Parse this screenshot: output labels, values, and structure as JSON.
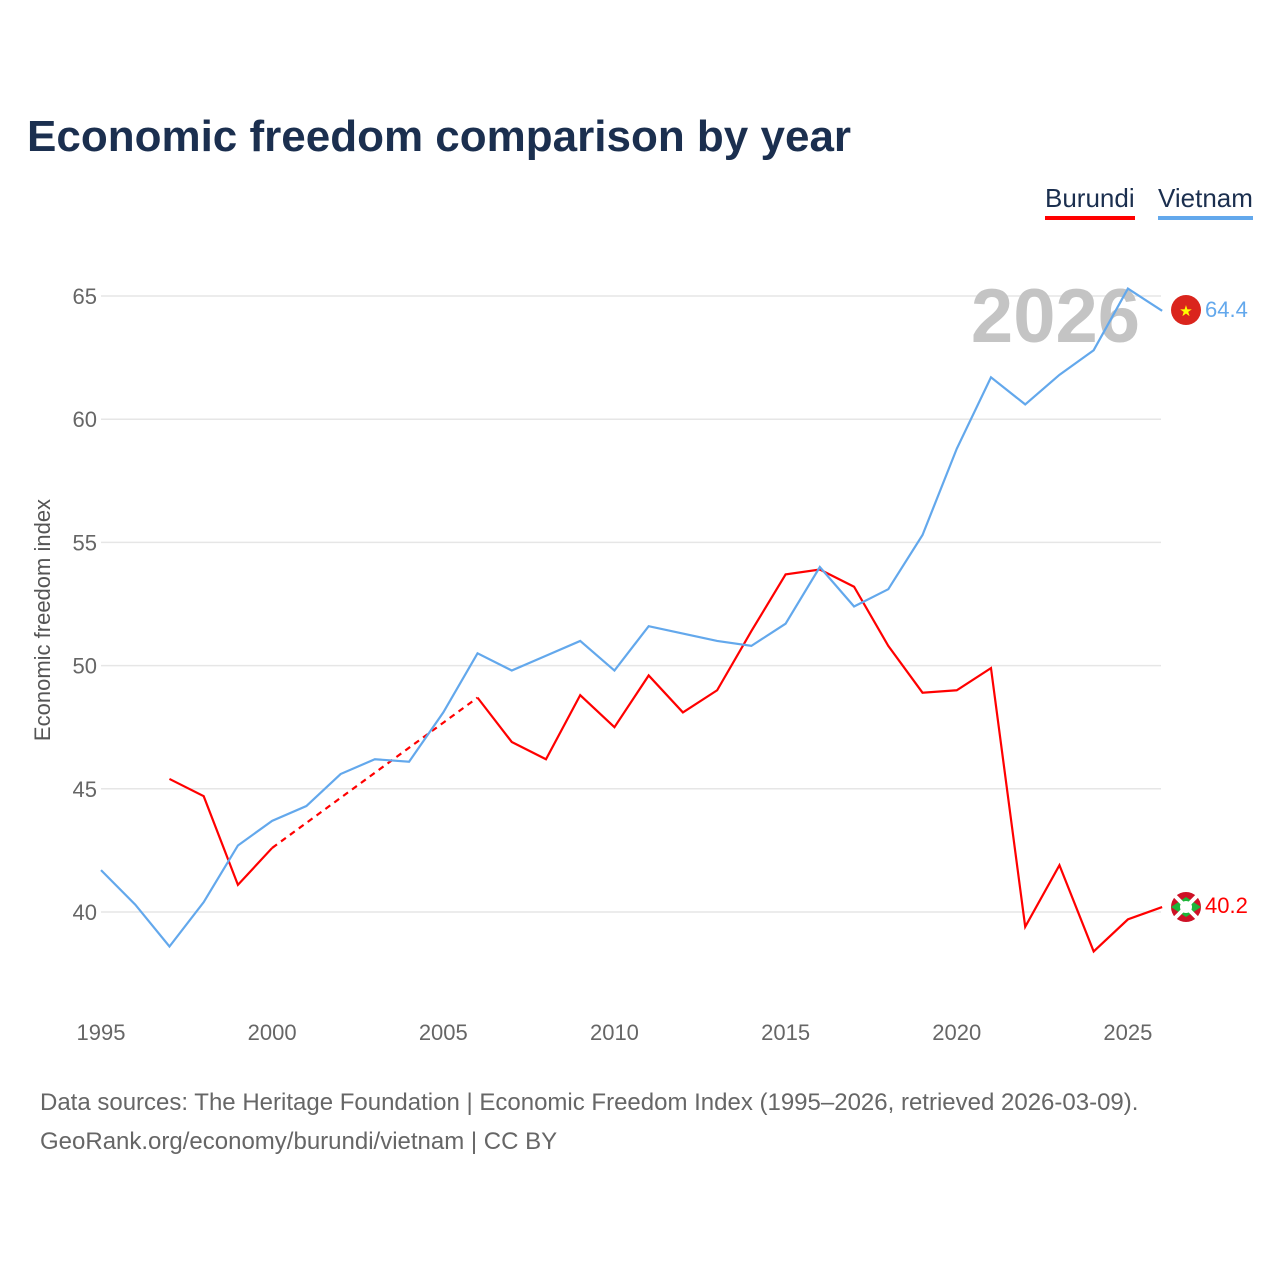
{
  "title": "Economic freedom comparison by year",
  "legend": [
    {
      "label": "Burundi",
      "color": "#ff0000"
    },
    {
      "label": "Vietnam",
      "color": "#63a8ec"
    }
  ],
  "footer": {
    "line1": "Data sources: The Heritage Foundation | Economic Freedom Index (1995–2026, retrieved 2026-03-09).",
    "line2": "GeoRank.org/economy/burundi/vietnam | CC BY"
  },
  "chart_data": {
    "type": "line",
    "title": "Economic freedom comparison by year",
    "ylabel": "Economic freedom index",
    "xlabel": "",
    "year_watermark": "2026",
    "xlim": [
      1995,
      2026
    ],
    "ylim": [
      36,
      68
    ],
    "xticks": [
      "1995",
      "2000",
      "2005",
      "2010",
      "2015",
      "2020",
      "2025"
    ],
    "yticks": [
      "40",
      "45",
      "50",
      "55",
      "60",
      "65"
    ],
    "grid": true,
    "legend_position": "top-right",
    "series": [
      {
        "name": "Burundi",
        "color": "#ff0000",
        "end_label": "40.2",
        "x": [
          1997,
          1998,
          1999,
          2000,
          2006,
          2007,
          2008,
          2009,
          2010,
          2011,
          2012,
          2013,
          2014,
          2015,
          2016,
          2017,
          2018,
          2019,
          2020,
          2021,
          2022,
          2023,
          2024,
          2025,
          2026
        ],
        "values": [
          45.4,
          44.7,
          41.1,
          42.6,
          48.7,
          46.9,
          46.2,
          48.8,
          47.5,
          49.6,
          48.1,
          49.0,
          51.4,
          53.7,
          53.9,
          53.2,
          50.8,
          48.9,
          49.0,
          49.9,
          39.4,
          41.9,
          38.4,
          39.7,
          40.2
        ],
        "gap": [
          2000,
          2006
        ]
      },
      {
        "name": "Vietnam",
        "color": "#63a8ec",
        "end_label": "64.4",
        "x": [
          1995,
          1996,
          1997,
          1998,
          1999,
          2000,
          2001,
          2002,
          2003,
          2004,
          2005,
          2006,
          2007,
          2008,
          2009,
          2010,
          2011,
          2012,
          2013,
          2014,
          2015,
          2016,
          2017,
          2018,
          2019,
          2020,
          2021,
          2022,
          2023,
          2024,
          2025,
          2026
        ],
        "values": [
          41.7,
          40.3,
          38.6,
          40.4,
          42.7,
          43.7,
          44.3,
          45.6,
          46.2,
          46.1,
          48.1,
          50.5,
          49.8,
          50.4,
          51.0,
          49.8,
          51.6,
          51.3,
          51.0,
          50.8,
          51.7,
          54.0,
          52.4,
          53.1,
          55.3,
          58.8,
          61.7,
          60.6,
          61.8,
          62.8,
          65.3,
          64.4
        ]
      }
    ]
  }
}
